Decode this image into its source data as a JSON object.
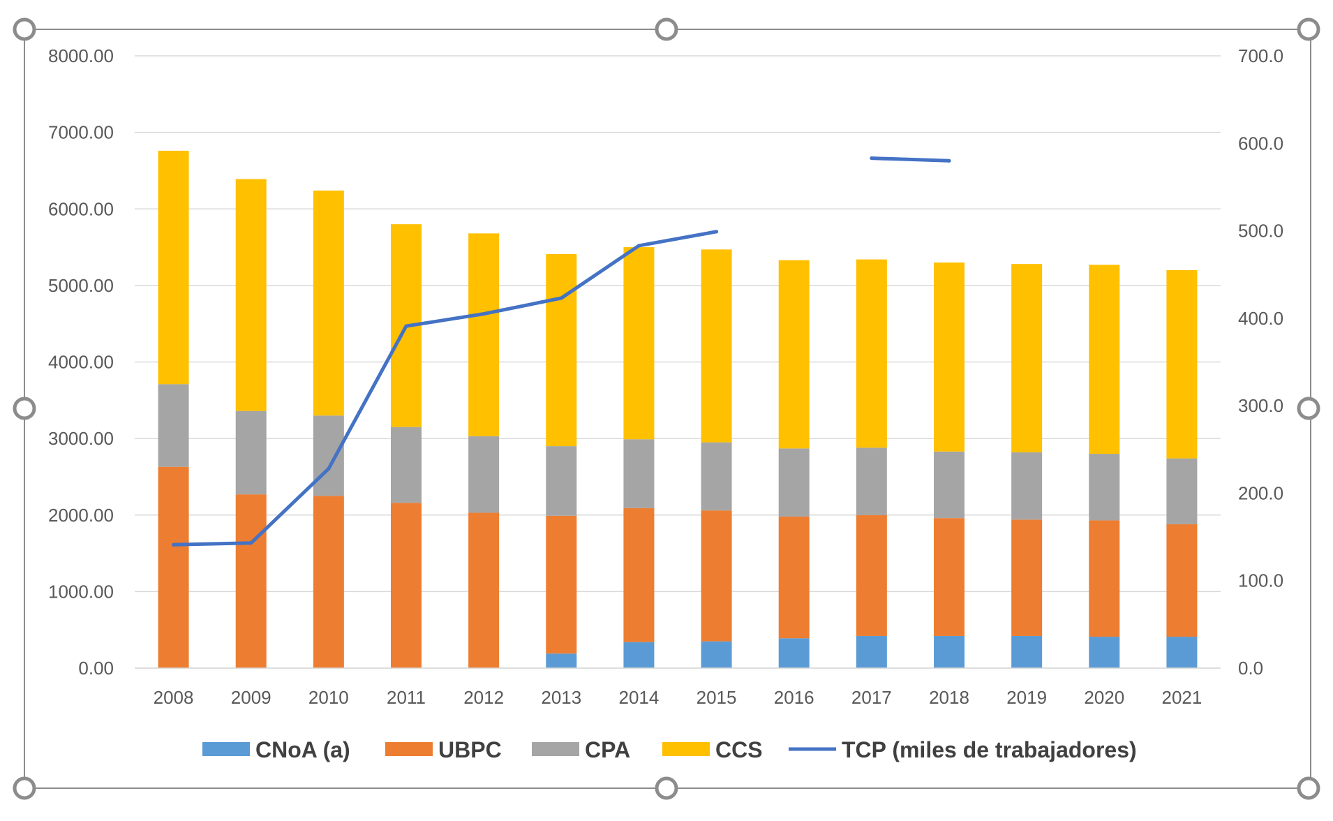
{
  "chart_data": {
    "type": "bar",
    "stacked": true,
    "categories": [
      "2008",
      "2009",
      "2010",
      "2011",
      "2012",
      "2013",
      "2014",
      "2015",
      "2016",
      "2017",
      "2018",
      "2019",
      "2020",
      "2021"
    ],
    "series": [
      {
        "name": "CNoA (a)",
        "color": "#5B9BD5",
        "values": [
          0,
          0,
          0,
          0,
          0,
          190,
          340,
          350,
          390,
          420,
          420,
          420,
          410,
          410
        ]
      },
      {
        "name": "UBPC",
        "color": "#ED7D31",
        "values": [
          2630,
          2270,
          2250,
          2160,
          2030,
          1800,
          1750,
          1710,
          1590,
          1580,
          1540,
          1520,
          1520,
          1470
        ]
      },
      {
        "name": "CPA",
        "color": "#A5A5A5",
        "values": [
          1080,
          1090,
          1050,
          990,
          1000,
          910,
          900,
          890,
          890,
          880,
          870,
          880,
          870,
          860
        ]
      },
      {
        "name": "CCS",
        "color": "#FFC000",
        "values": [
          3050,
          3030,
          2940,
          2650,
          2650,
          2510,
          2510,
          2520,
          2460,
          2460,
          2470,
          2460,
          2470,
          2460
        ]
      }
    ],
    "line_series": {
      "name": "TCP (miles de trabajadores)",
      "color": "#4472C4",
      "values": [
        141.0,
        143.0,
        228.0,
        391.0,
        405.0,
        423.0,
        483.0,
        499.0,
        null,
        583.0,
        580.0,
        null,
        null,
        null
      ]
    },
    "y_left": {
      "ylim": [
        0,
        8000
      ],
      "ticks": [
        "0.00",
        "1000.00",
        "2000.00",
        "3000.00",
        "4000.00",
        "5000.00",
        "6000.00",
        "7000.00",
        "8000.00"
      ]
    },
    "y_right": {
      "ylim": [
        0,
        700
      ],
      "ticks": [
        "0.0",
        "100.0",
        "200.0",
        "300.0",
        "400.0",
        "500.0",
        "600.0",
        "700.0"
      ]
    },
    "legend_position": "bottom",
    "grid": true
  }
}
